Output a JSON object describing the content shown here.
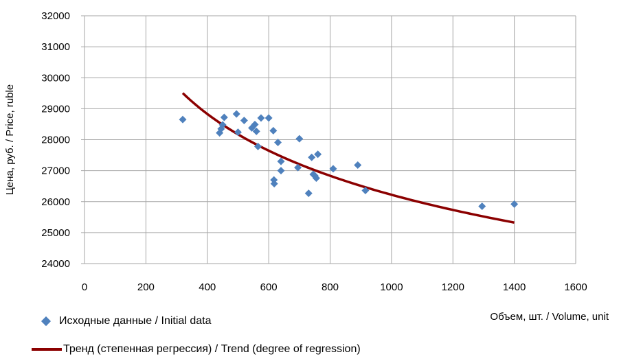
{
  "chart_data": {
    "type": "scatter",
    "xlabel": "Объем, шт. / Volume, unit",
    "ylabel": "Цена, руб. / Price, ruble",
    "xlim": [
      0,
      1600
    ],
    "ylim": [
      24000,
      32000
    ],
    "x_ticks": [
      "0",
      "200",
      "400",
      "600",
      "800",
      "1000",
      "1200",
      "1400",
      "1600"
    ],
    "y_ticks": [
      "24000",
      "25000",
      "26000",
      "27000",
      "28000",
      "29000",
      "30000",
      "31000",
      "32000"
    ],
    "grid": true,
    "legend_position": "bottom-left",
    "colors": {
      "points": "#4F81BD",
      "trend": "#8B0000",
      "grid": "#A6A6A6"
    },
    "series": [
      {
        "name": "Исходные данные / Initial data",
        "kind": "points",
        "points": [
          [
            320,
            28650
          ],
          [
            440,
            28220
          ],
          [
            445,
            28350
          ],
          [
            450,
            28480
          ],
          [
            455,
            28720
          ],
          [
            495,
            28830
          ],
          [
            500,
            28240
          ],
          [
            520,
            28620
          ],
          [
            545,
            28380
          ],
          [
            555,
            28490
          ],
          [
            560,
            28270
          ],
          [
            565,
            27780
          ],
          [
            575,
            28700
          ],
          [
            600,
            28700
          ],
          [
            615,
            28290
          ],
          [
            617,
            26700
          ],
          [
            618,
            26580
          ],
          [
            630,
            27910
          ],
          [
            640,
            27000
          ],
          [
            640,
            27300
          ],
          [
            695,
            27100
          ],
          [
            700,
            28030
          ],
          [
            730,
            26270
          ],
          [
            740,
            27430
          ],
          [
            745,
            26880
          ],
          [
            750,
            26840
          ],
          [
            755,
            26760
          ],
          [
            760,
            27530
          ],
          [
            810,
            27060
          ],
          [
            890,
            27180
          ],
          [
            915,
            26360
          ],
          [
            1295,
            25850
          ],
          [
            1400,
            25920
          ]
        ]
      },
      {
        "name": "Тренд (степенная регрессия) / Trend (degree of regression)",
        "kind": "line",
        "model": {
          "a": 53600,
          "b": -0.1035
        },
        "x_range": [
          320,
          1400
        ]
      }
    ]
  }
}
